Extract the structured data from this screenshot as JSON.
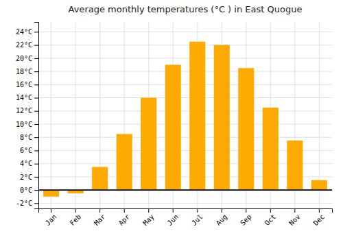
{
  "chart_data": {
    "type": "bar",
    "title": "Average monthly temperatures (°C ) in East Quogue",
    "categories": [
      "Jan",
      "Feb",
      "Mar",
      "Apr",
      "May",
      "Jun",
      "Jul",
      "Aug",
      "Sep",
      "Oct",
      "Nov",
      "Dec"
    ],
    "values": [
      -1.0,
      -0.5,
      3.5,
      8.5,
      14.0,
      19.0,
      22.5,
      22.0,
      18.5,
      12.5,
      7.5,
      1.5
    ],
    "color": "#FFAA00",
    "ylim": [
      -2.8,
      25.5
    ],
    "yticks": [
      {
        "value": -2,
        "label": "-2°C"
      },
      {
        "value": 0,
        "label": "0°C"
      },
      {
        "value": 2,
        "label": "2°C"
      },
      {
        "value": 4,
        "label": "4°C"
      },
      {
        "value": 6,
        "label": "6°C"
      },
      {
        "value": 8,
        "label": "8°C"
      },
      {
        "value": 10,
        "label": "10°C"
      },
      {
        "value": 12,
        "label": "12°C"
      },
      {
        "value": 14,
        "label": "14°C"
      },
      {
        "value": 16,
        "label": "16°C"
      },
      {
        "value": 18,
        "label": "18°C"
      },
      {
        "value": 20,
        "label": "20°C"
      },
      {
        "value": 22,
        "label": "22°C"
      },
      {
        "value": 24,
        "label": "24°C"
      }
    ],
    "grid": true
  }
}
